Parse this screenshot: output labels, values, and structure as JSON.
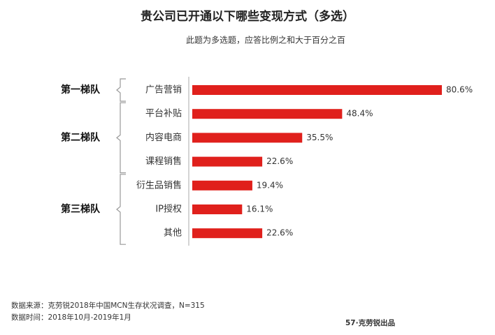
{
  "chart_data": {
    "type": "bar",
    "title": "贵公司已开通以下哪些变现方式（多选）",
    "subtitle": "此题为多选题，应答比例之和大于百分之百",
    "color": "#e0201c",
    "groups": [
      {
        "label": "第一梯队",
        "categories": [
          "广告营销"
        ],
        "values": [
          80.6
        ],
        "value_labels": [
          "80.6%"
        ]
      },
      {
        "label": "第二梯队",
        "categories": [
          "平台补贴",
          "内容电商",
          "课程销售"
        ],
        "values": [
          48.4,
          35.5,
          22.6
        ],
        "value_labels": [
          "48.4%",
          "35.5%",
          "22.6%"
        ]
      },
      {
        "label": "第三梯队",
        "categories": [
          "衍生品销售",
          "IP授权",
          "其他"
        ],
        "values": [
          19.4,
          16.1,
          22.6
        ],
        "value_labels": [
          "19.4%",
          "16.1%",
          "22.6%"
        ]
      }
    ],
    "source": "数据来源：克劳锐2018年中国MCN生存状况调查，N=315",
    "period": "数据时间：2018年10月-2019年1月",
    "brand": "57·克劳锐出品"
  }
}
